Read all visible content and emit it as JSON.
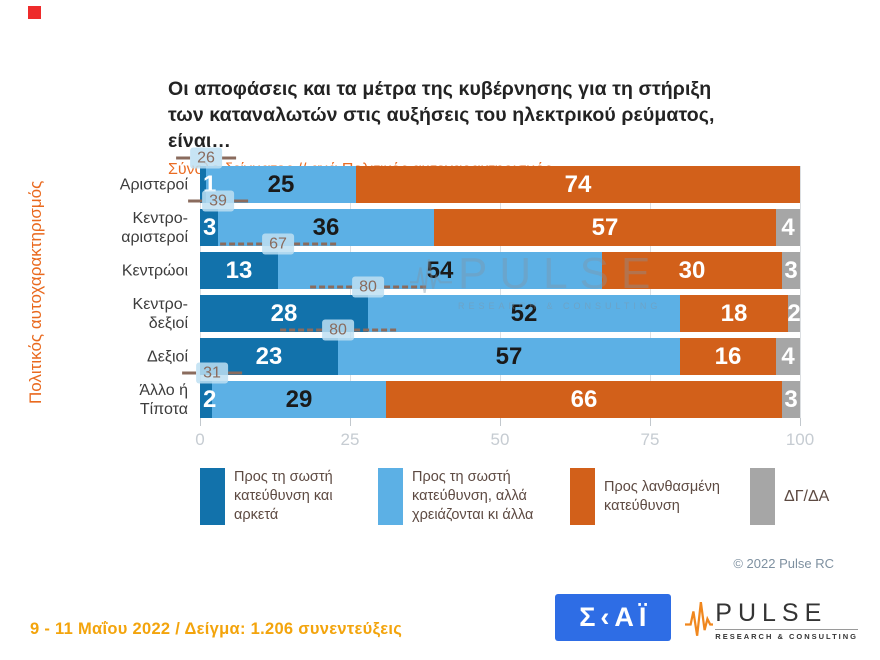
{
  "header": {
    "title_line1": "Οι αποφάσεις και τα μέτρα της κυβέρνησης για τη στήριξη",
    "title_line2": "των καταναλωτών στις αυξήσεις του ηλεκτρικού ρεύματος, είναι…",
    "subtitle": "Σύνολο δείγματος // ανά Πολιτικός αυτοχαρακτηρισμός"
  },
  "chart_data": {
    "type": "bar",
    "stacked": true,
    "orientation": "horizontal",
    "y_axis_title": "Πολιτικός αυτοχαρακτηρισμός",
    "categories": [
      "Αριστεροί",
      "Κεντρο-αριστεροί",
      "Κεντρώοι",
      "Κεντρο-δεξιοί",
      "Δεξιοί",
      "Άλλο ή Τίποτα"
    ],
    "category_lines": [
      [
        "Αριστεροί"
      ],
      [
        "Κεντρο-",
        "αριστεροί"
      ],
      [
        "Κεντρώοι"
      ],
      [
        "Κεντρο-",
        "δεξιοί"
      ],
      [
        "Δεξιοί"
      ],
      [
        "Άλλο ή",
        "Τίποτα"
      ]
    ],
    "series": [
      {
        "key": "right-enough",
        "name": "Προς τη σωστή κατεύθυνση και αρκετά",
        "color": "#1272ab",
        "value_color": "#ffffff",
        "values": [
          1,
          3,
          13,
          28,
          23,
          2
        ]
      },
      {
        "key": "right-more-needed",
        "name": "Προς τη σωστή κατεύθυνση, αλλά χρειάζονται κι άλλα",
        "color": "#5cb0e5",
        "value_color": "#1a1a1a",
        "values": [
          25,
          36,
          54,
          52,
          57,
          29
        ]
      },
      {
        "key": "wrong-direction",
        "name": "Προς λανθασμένη κατεύθυνση",
        "color": "#d2601a",
        "value_color": "#ffffff",
        "values": [
          74,
          57,
          30,
          18,
          16,
          66
        ]
      },
      {
        "key": "dk-na",
        "name": "ΔΓ/ΔΑ",
        "color": "#a6a6a6",
        "value_color": "#ffffff",
        "values": [
          0,
          4,
          3,
          2,
          4,
          3
        ]
      }
    ],
    "right_direction_totals": {
      "values": [
        26,
        39,
        67,
        80,
        80,
        31
      ],
      "style": [
        "short",
        "short",
        "long",
        "long",
        "long",
        "short"
      ]
    },
    "x_ticks": [
      "0",
      "25",
      "50",
      "75",
      "100"
    ],
    "xlim": [
      0,
      100
    ],
    "grid": true,
    "legend_position": "bottom"
  },
  "watermark": {
    "brand": "PULSE",
    "tagline": "RESEARCH & CONSULTING"
  },
  "footer": {
    "copyright": "© 2022 Pulse RC",
    "fieldwork": "9 - 11  Μαΐου  2022  /  Δείγμα:  1.206 συνεντεύξεις",
    "skai_logo_text": "Σ‹ΑΪ",
    "pulse_logo_text": "PULSE",
    "pulse_logo_tagline": "RESEARCH & CONSULTING"
  },
  "colors": {
    "title": "#232323",
    "subtitle": "#ea6c23",
    "axis_title": "#e9691e",
    "tick_label": "#c6ccd2",
    "sum_label": "#8a6b5d",
    "sum_label_bg": "#bddff2",
    "legend_text": "#5d4a42",
    "fieldwork": "#f3a40c",
    "skai_blue": "#2e6de5",
    "pulse_wave_orange": "#f0871e",
    "marker_red": "#ee2b2b"
  }
}
